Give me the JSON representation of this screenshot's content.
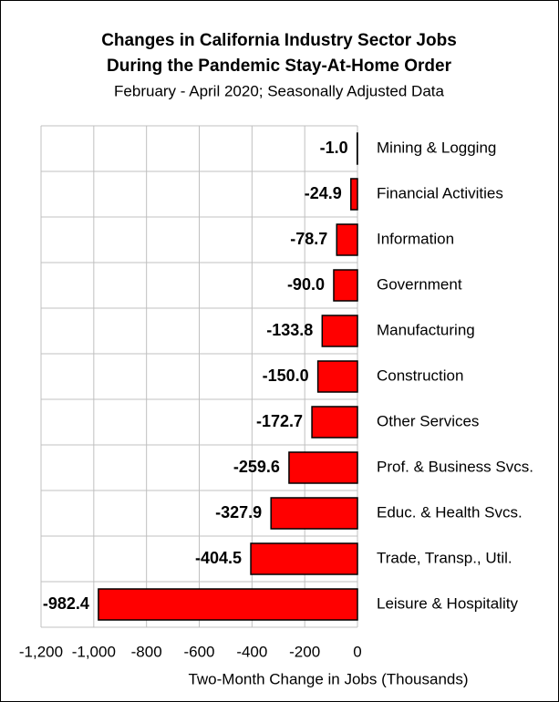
{
  "chart_data": {
    "type": "bar",
    "orientation": "horizontal",
    "title": [
      "Changes in California Industry Sector Jobs",
      "During the Pandemic Stay-At-Home Order"
    ],
    "subtitle": "February - April 2020; Seasonally Adjusted Data",
    "x_label": "Two-Month Change in Jobs (Thousands)",
    "categories": [
      "Mining & Logging",
      "Financial Activities",
      "Information",
      "Government",
      "Manufacturing",
      "Construction",
      "Other Services",
      "Prof. & Business Svcs.",
      "Educ. & Health Svcs.",
      "Trade, Transp., Util.",
      "Leisure & Hospitality"
    ],
    "values": [
      -1.0,
      -24.9,
      -78.7,
      -90.0,
      -133.8,
      -150.0,
      -172.7,
      -259.6,
      -327.9,
      -404.5,
      -982.4
    ],
    "value_labels": [
      "-1.0",
      "-24.9",
      "-78.7",
      "-90.0",
      "-133.8",
      "-150.0",
      "-172.7",
      "-259.6",
      "-327.9",
      "-404.5",
      "-982.4"
    ],
    "color": "#ff0000",
    "label_color": "#e8141c",
    "xlim": [
      -1200,
      0
    ],
    "xticks": [
      {
        "value": -1200,
        "label": "-1,200"
      },
      {
        "value": -1000,
        "label": "-1,000"
      },
      -800,
      -600,
      -400,
      -200,
      0
    ],
    "grid": true
  }
}
